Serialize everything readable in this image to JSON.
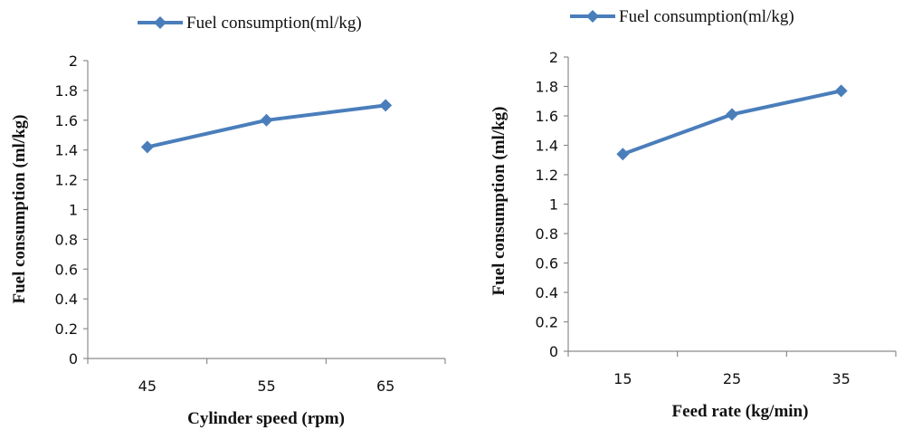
{
  "colors": {
    "series": "#4a7ebb",
    "axis": "#8c8c8c",
    "text": "#111111"
  },
  "chart_data": [
    {
      "type": "line",
      "x": [
        45,
        55,
        65
      ],
      "categories": [
        "45",
        "55",
        "65"
      ],
      "series": [
        {
          "name": "Fuel consumption(ml/kg)",
          "values": [
            1.42,
            1.6,
            1.7
          ]
        }
      ],
      "xlabel": "Cylinder speed (rpm)",
      "ylabel": "Fuel consumption (ml/kg)",
      "ylim": [
        0,
        2
      ],
      "yticks": [
        "0",
        "0.2",
        "0.4",
        "0.6",
        "0.8",
        "1",
        "1.2",
        "1.4",
        "1.6",
        "1.8",
        "2"
      ],
      "grid": false,
      "legend": "top-center",
      "marker": "diamond-icon"
    },
    {
      "type": "line",
      "x": [
        15,
        25,
        35
      ],
      "categories": [
        "15",
        "25",
        "35"
      ],
      "series": [
        {
          "name": "Fuel consumption(ml/kg)",
          "values": [
            1.34,
            1.61,
            1.77
          ]
        }
      ],
      "xlabel": "Feed rate (kg/min)",
      "ylabel": "Fuel consumption (ml/kg)",
      "ylim": [
        0,
        2
      ],
      "yticks": [
        "0",
        "0.2",
        "0.4",
        "0.6",
        "0.8",
        "1",
        "1.2",
        "1.4",
        "1.6",
        "1.8",
        "2"
      ],
      "grid": false,
      "legend": "top-center",
      "marker": "diamond-icon"
    }
  ]
}
